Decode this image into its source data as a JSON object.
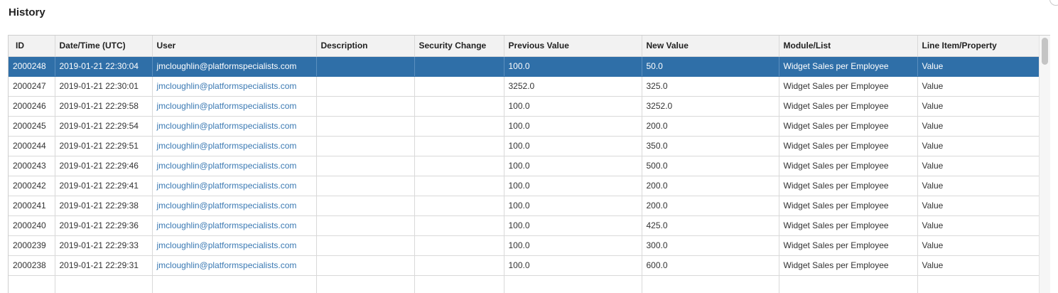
{
  "page": {
    "title": "History"
  },
  "table": {
    "columns": [
      "ID",
      "Date/Time (UTC)",
      "User",
      "Description",
      "Security Change",
      "Previous Value",
      "New Value",
      "Module/List",
      "Line Item/Property"
    ],
    "selected_row": 0,
    "rows": [
      [
        "2000248",
        "2019-01-21 22:30:04",
        "jmcloughlin@platformspecialists.com",
        "",
        "",
        "100.0",
        "50.0",
        "Widget Sales per Employee",
        "Value"
      ],
      [
        "2000247",
        "2019-01-21 22:30:01",
        "jmcloughlin@platformspecialists.com",
        "",
        "",
        "3252.0",
        "325.0",
        "Widget Sales per Employee",
        "Value"
      ],
      [
        "2000246",
        "2019-01-21 22:29:58",
        "jmcloughlin@platformspecialists.com",
        "",
        "",
        "100.0",
        "3252.0",
        "Widget Sales per Employee",
        "Value"
      ],
      [
        "2000245",
        "2019-01-21 22:29:54",
        "jmcloughlin@platformspecialists.com",
        "",
        "",
        "100.0",
        "200.0",
        "Widget Sales per Employee",
        "Value"
      ],
      [
        "2000244",
        "2019-01-21 22:29:51",
        "jmcloughlin@platformspecialists.com",
        "",
        "",
        "100.0",
        "350.0",
        "Widget Sales per Employee",
        "Value"
      ],
      [
        "2000243",
        "2019-01-21 22:29:46",
        "jmcloughlin@platformspecialists.com",
        "",
        "",
        "100.0",
        "500.0",
        "Widget Sales per Employee",
        "Value"
      ],
      [
        "2000242",
        "2019-01-21 22:29:41",
        "jmcloughlin@platformspecialists.com",
        "",
        "",
        "100.0",
        "200.0",
        "Widget Sales per Employee",
        "Value"
      ],
      [
        "2000241",
        "2019-01-21 22:29:38",
        "jmcloughlin@platformspecialists.com",
        "",
        "",
        "100.0",
        "200.0",
        "Widget Sales per Employee",
        "Value"
      ],
      [
        "2000240",
        "2019-01-21 22:29:36",
        "jmcloughlin@platformspecialists.com",
        "",
        "",
        "100.0",
        "425.0",
        "Widget Sales per Employee",
        "Value"
      ],
      [
        "2000239",
        "2019-01-21 22:29:33",
        "jmcloughlin@platformspecialists.com",
        "",
        "",
        "100.0",
        "300.0",
        "Widget Sales per Employee",
        "Value"
      ],
      [
        "2000238",
        "2019-01-21 22:29:31",
        "jmcloughlin@platformspecialists.com",
        "",
        "",
        "100.0",
        "600.0",
        "Widget Sales per Employee",
        "Value"
      ],
      [
        "",
        "",
        "",
        "",
        "",
        "",
        "",
        "",
        ""
      ]
    ]
  },
  "colors": {
    "selected_row_background": "#2f6fa8",
    "user_link": "#3a79b3",
    "header_background": "#f2f2f2"
  }
}
